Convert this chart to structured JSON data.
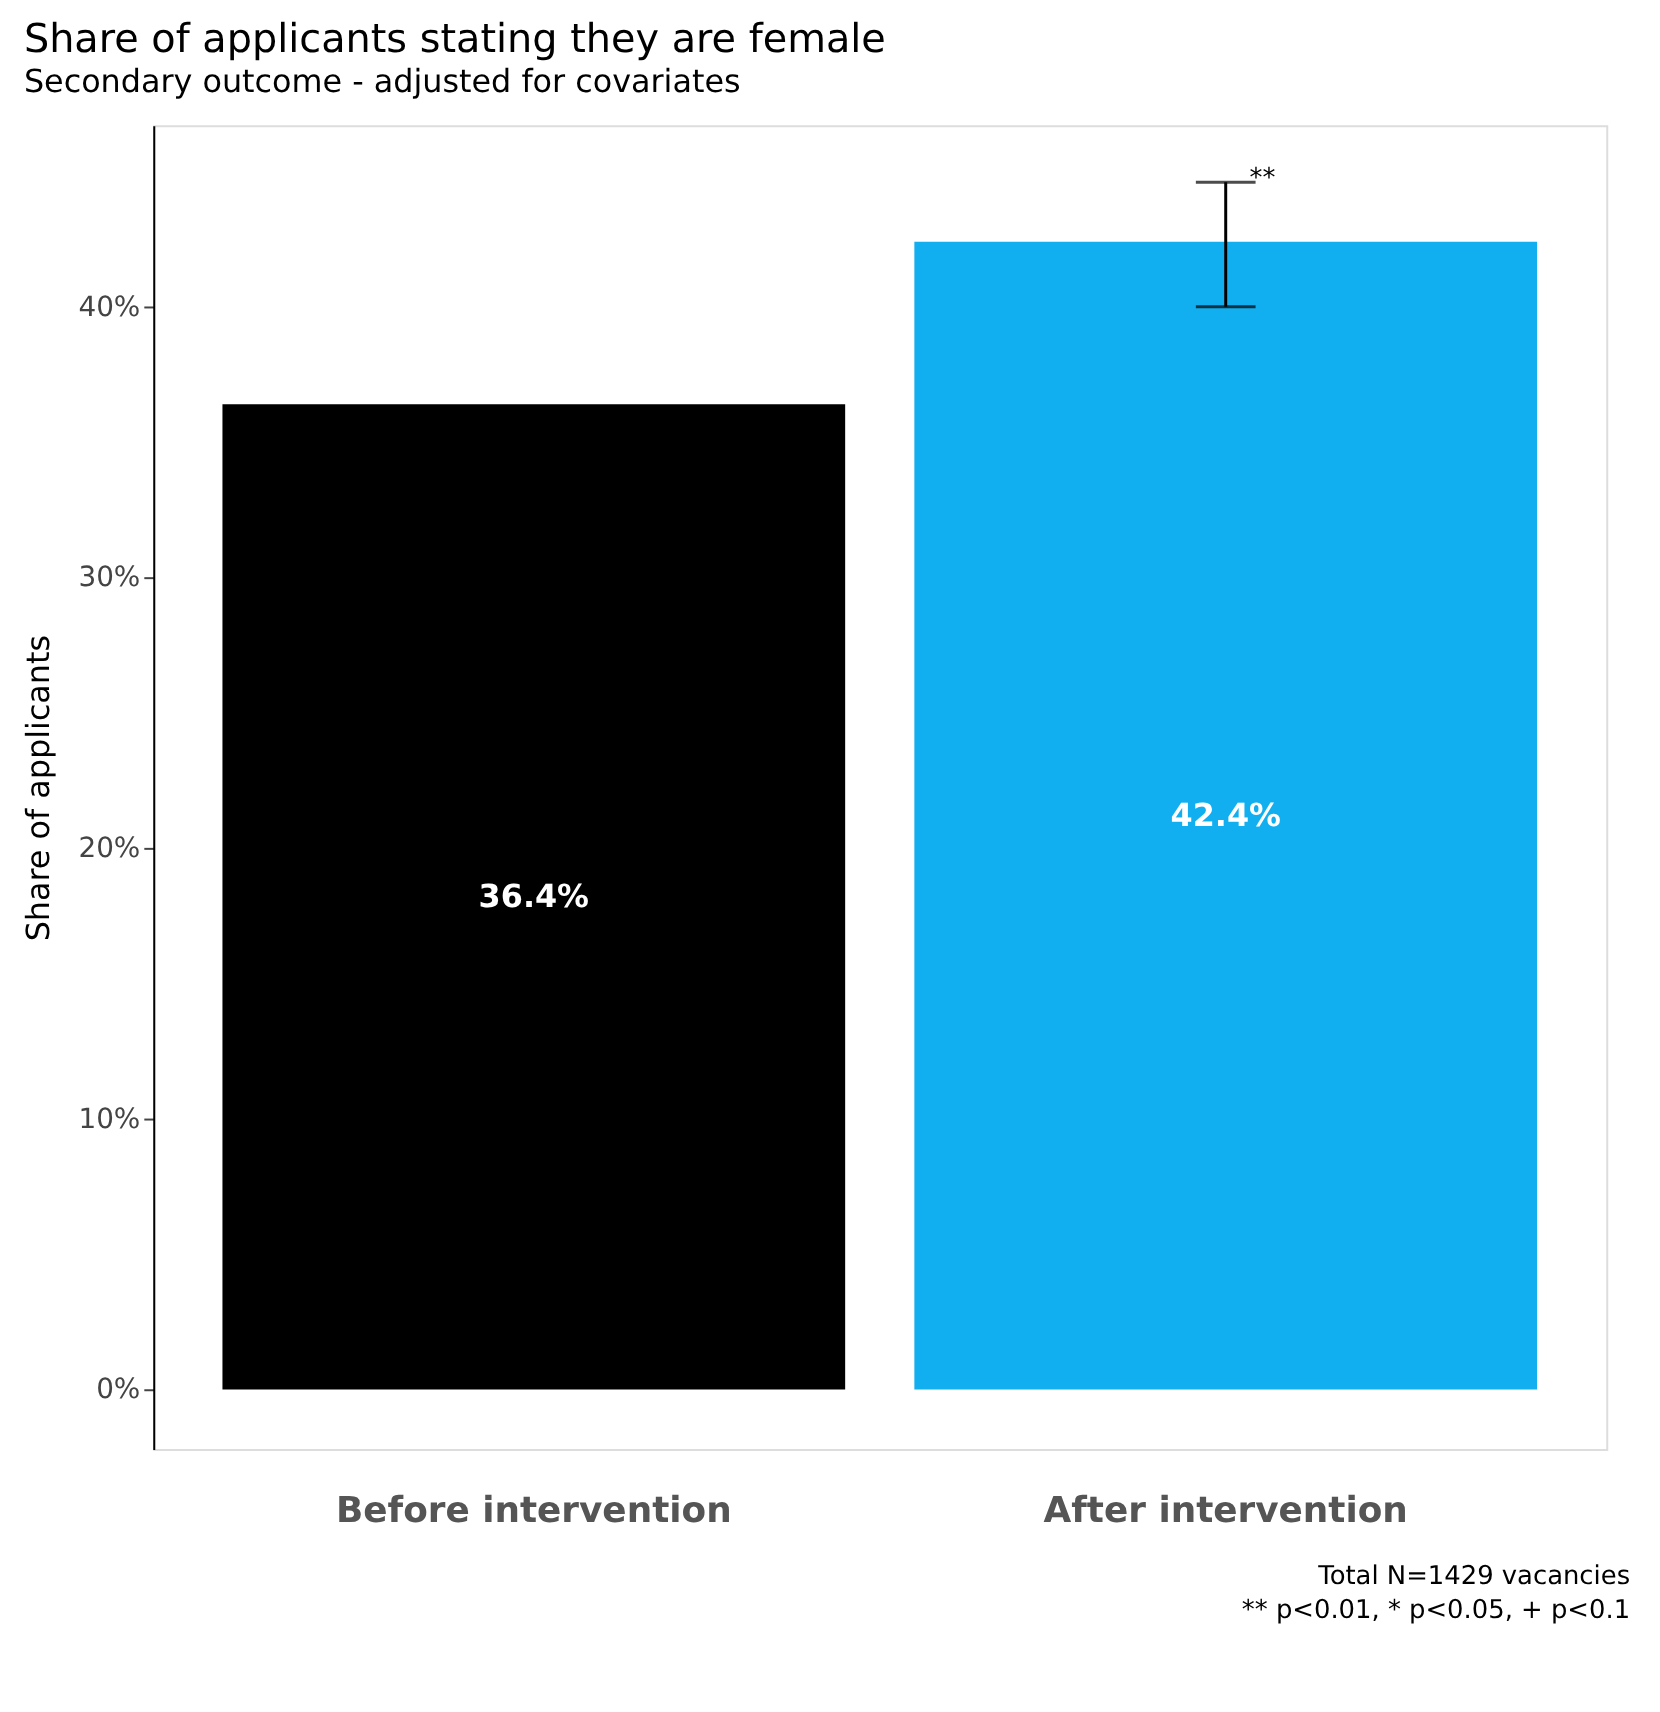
{
  "chart_data": {
    "type": "bar",
    "title": "Share of applicants stating they are female",
    "subtitle": "Secondary outcome - adjusted for covariates",
    "ylabel": "Share of applicants",
    "categories": [
      "Before intervention",
      "After intervention"
    ],
    "values": [
      36.4,
      42.4
    ],
    "colors": [
      "#000000",
      "#12aff0"
    ],
    "value_labels": [
      "36.4%",
      "42.4%"
    ],
    "errors": [
      null,
      [
        40.0,
        44.6
      ]
    ],
    "ylim": [
      -2.2,
      46.7
    ],
    "yticks": [
      {
        "value": 0,
        "label": "0%"
      },
      {
        "value": 10,
        "label": "10%"
      },
      {
        "value": 20,
        "label": "20%"
      },
      {
        "value": 30,
        "label": "30%"
      },
      {
        "value": 40,
        "label": "40%"
      }
    ],
    "grid": false,
    "annotations": [
      {
        "text": "**",
        "x": "After intervention",
        "y": 44.6
      },
      "Total N=1429 vacancies",
      "** p<0.01, * p<0.05, + p<0.1"
    ]
  }
}
